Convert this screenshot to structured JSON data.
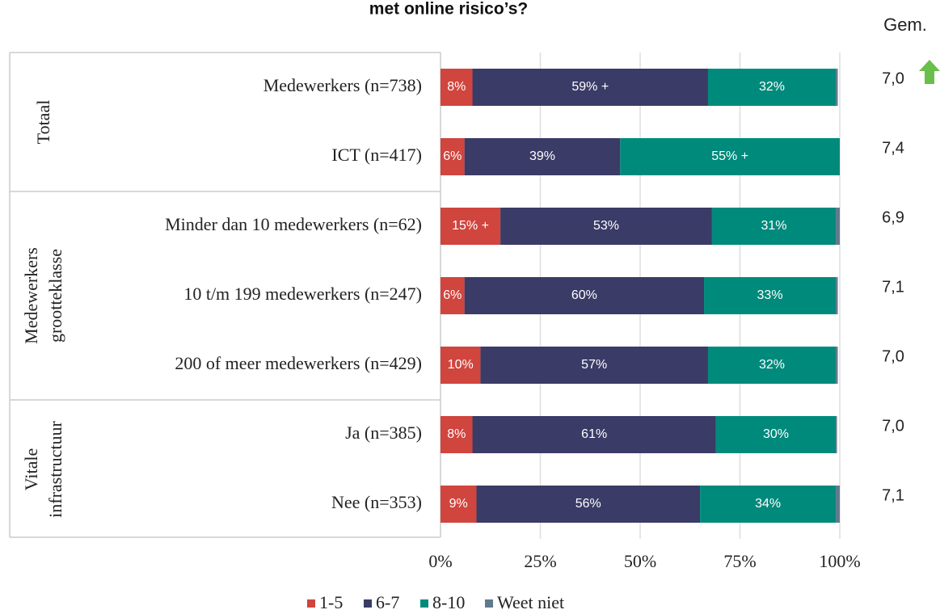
{
  "chart_data": {
    "type": "stacked-barh",
    "title": "met online risico’s?",
    "categories": [
      "Medewerkers (n=738)",
      "ICT (n=417)",
      "Minder dan 10 medewerkers (n=62)",
      "10 t/m 199 medewerkers (n=247)",
      "200 of meer medewerkers (n=429)",
      "Ja (n=385)",
      "Nee (n=353)"
    ],
    "groups": [
      {
        "label_lines": [
          "Totaal"
        ],
        "rows": [
          0,
          1
        ]
      },
      {
        "label_lines": [
          "Medewerkers",
          "grootteklasse"
        ],
        "rows": [
          2,
          4
        ]
      },
      {
        "label_lines": [
          "Vitale",
          "infrastructuur"
        ],
        "rows": [
          5,
          6
        ]
      }
    ],
    "series": [
      {
        "name": "1-5",
        "color": "#d0453e",
        "values": [
          8,
          6,
          15,
          6,
          10,
          8,
          9
        ],
        "value_labels": [
          "8%",
          "6%",
          "15%  +",
          "6%",
          "10%",
          "8%",
          "9%"
        ]
      },
      {
        "name": "6-7",
        "color": "#3b3b67",
        "values": [
          59,
          39,
          53,
          60,
          57,
          61,
          56
        ],
        "value_labels": [
          "59% +",
          "39%",
          "53%",
          "60%",
          "57%",
          "61%",
          "56%"
        ]
      },
      {
        "name": "8-10",
        "color": "#008a7c",
        "values": [
          32,
          55,
          31,
          33,
          32,
          30,
          34
        ],
        "value_labels": [
          "32%",
          "55% +",
          "31%",
          "33%",
          "32%",
          "30%",
          "34%"
        ]
      },
      {
        "name": "Weet niet",
        "color": "#5f7a8c",
        "values": [
          0.5,
          0,
          1,
          0.5,
          0.5,
          0.3,
          1
        ]
      }
    ],
    "averages": {
      "label": "Gem.",
      "values": [
        7.0,
        7.4,
        6.9,
        7.1,
        7.0,
        7.0,
        7.1
      ],
      "value_labels": [
        "7,0",
        "7,4",
        "6,9",
        "7,1",
        "7,0",
        "7,0",
        "7,1"
      ]
    },
    "xlim": [
      0,
      100
    ],
    "xticks": [
      {
        "value": 0,
        "label": "0%"
      },
      {
        "value": 25,
        "label": "25%"
      },
      {
        "value": 50,
        "label": "50%"
      },
      {
        "value": 75,
        "label": "75%"
      },
      {
        "value": 100,
        "label": "100%"
      }
    ],
    "grid": true,
    "legend": "bottom"
  }
}
